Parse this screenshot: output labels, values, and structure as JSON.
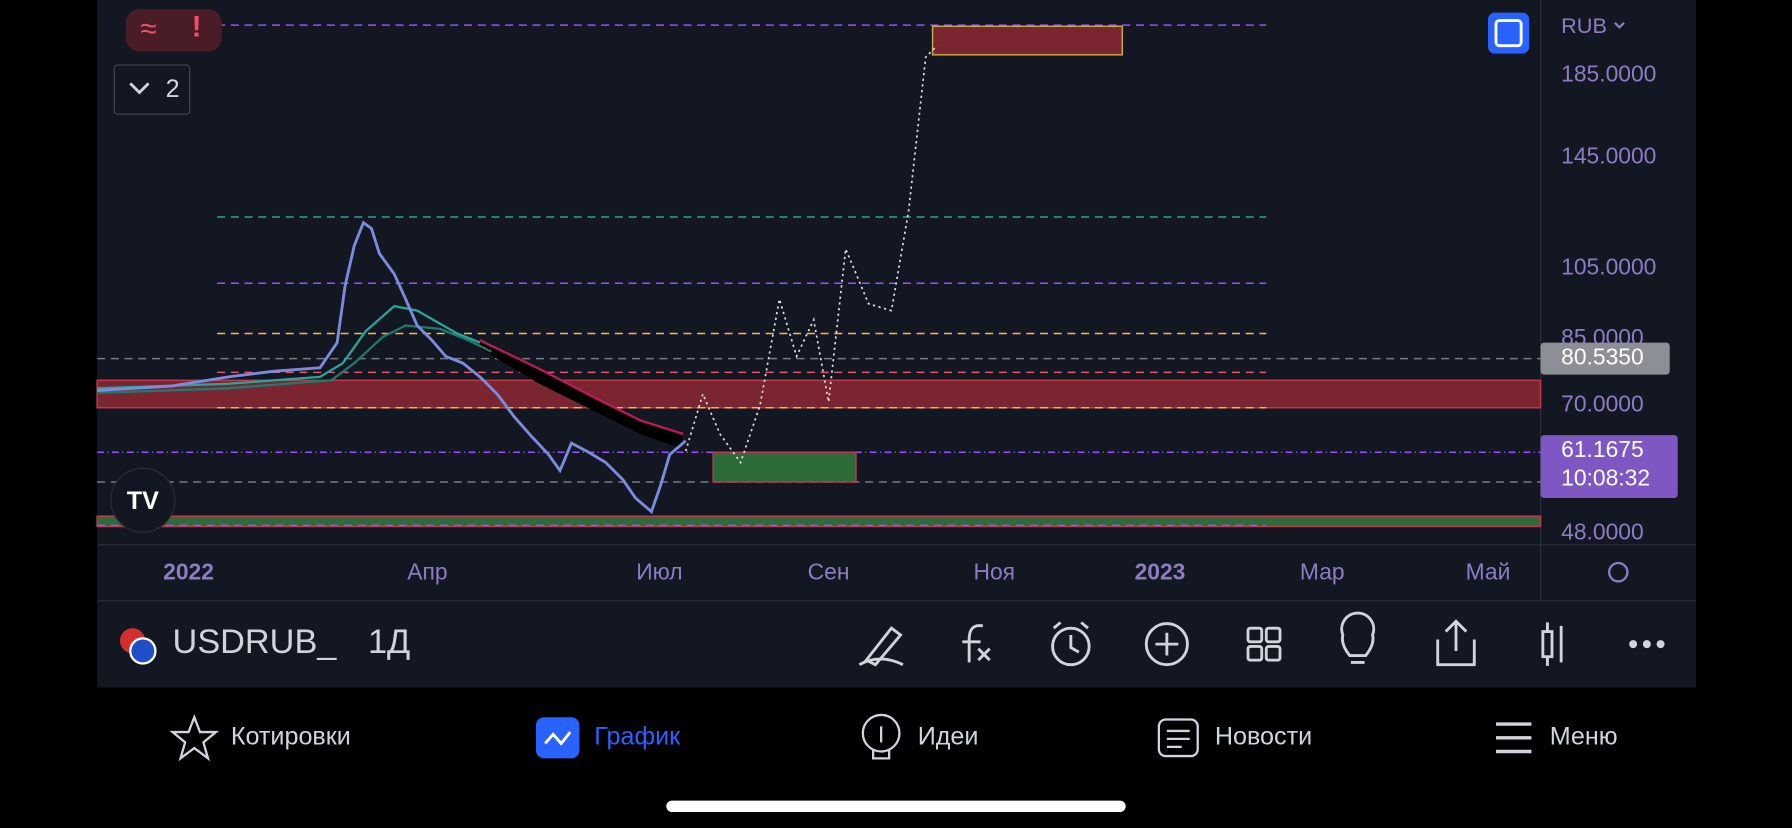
{
  "chart": {
    "alerts": [
      "≈",
      "!"
    ],
    "collapsed_count": "2",
    "currency": "RUB",
    "price_axis": [
      "185.0000",
      "145.0000",
      "105.0000",
      "85.0000",
      "70.0000",
      "48.0000"
    ],
    "last_price": "80.5350",
    "current_price": "61.1675",
    "countdown": "10:08:32",
    "time_axis": [
      "2022",
      "Апр",
      "Июл",
      "Сен",
      "Ноя",
      "2023",
      "Мар",
      "Май"
    ]
  },
  "toolbar": {
    "symbol": "USDRUB_",
    "interval": "1Д"
  },
  "bottom_nav": [
    "Котировки",
    "График",
    "Идеи",
    "Новости",
    "Меню"
  ]
}
